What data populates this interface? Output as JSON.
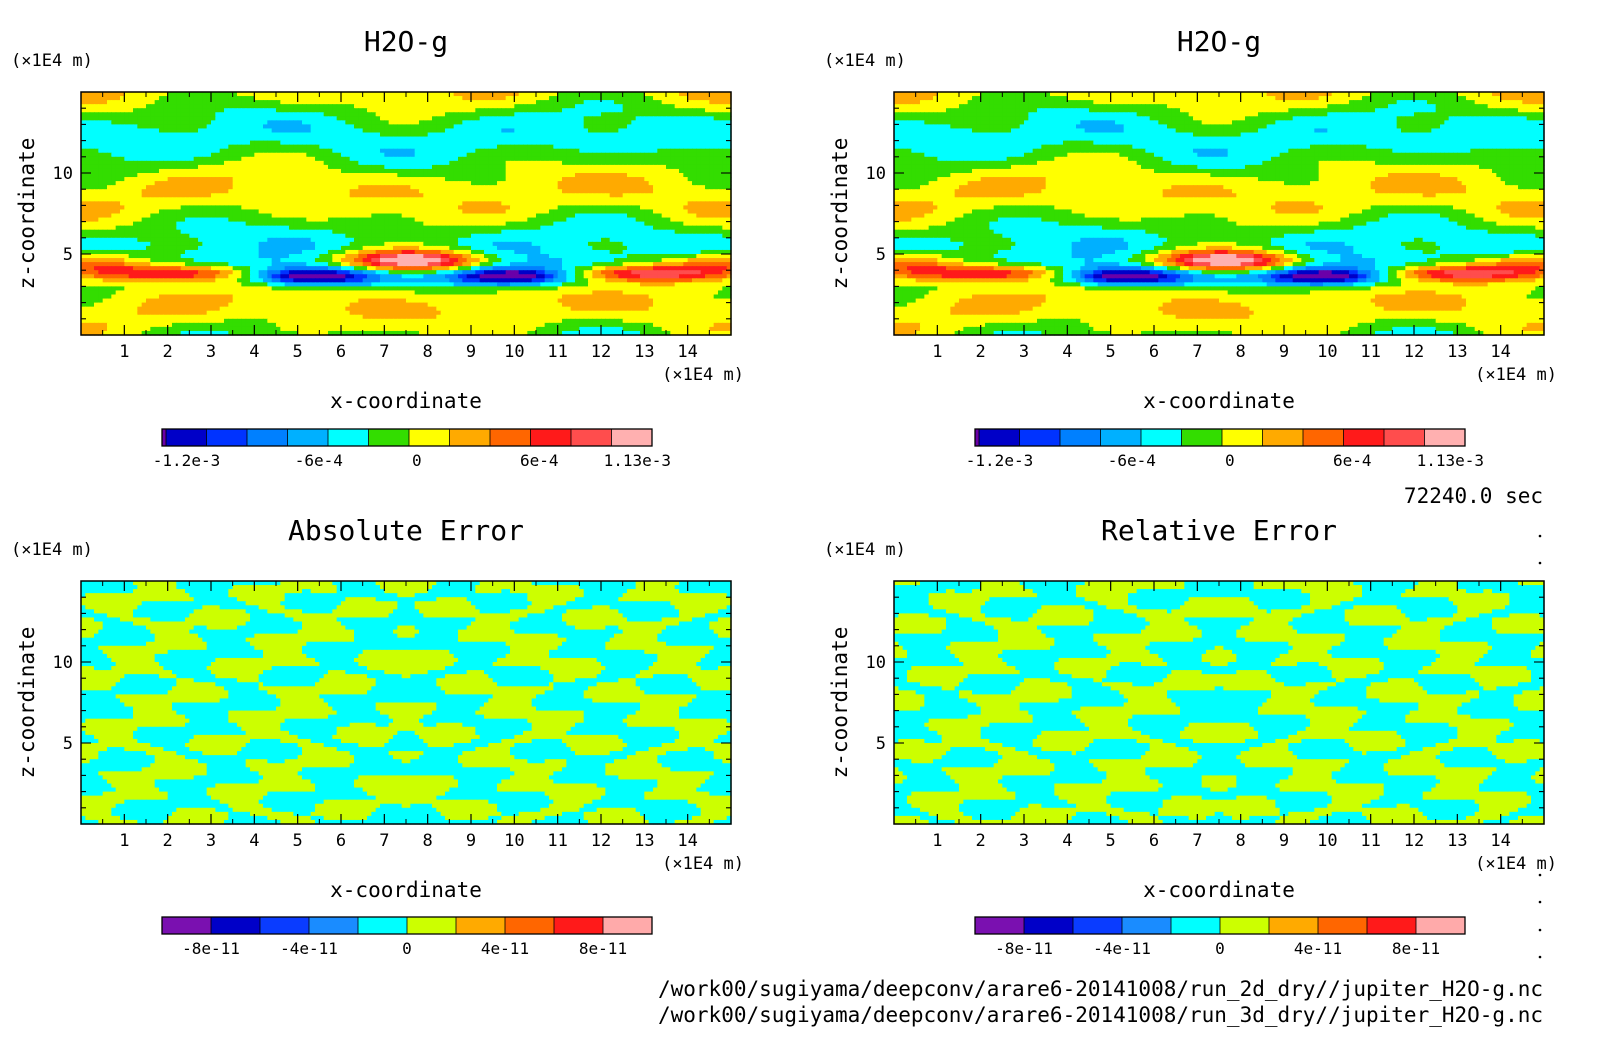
{
  "time_label": "72240.0 sec",
  "file_paths": [
    "/work00/sugiyama/deepconv/arare6-20141008/run_2d_dry//jupiter_H2O-g.nc",
    "/work00/sugiyama/deepconv/arare6-20141008/run_3d_dry//jupiter_H2O-g.nc"
  ],
  "chart_data": [
    {
      "type": "heatmap",
      "title": "H2O-g",
      "xlabel": "x-coordinate",
      "ylabel": "z-coordinate",
      "x_unit": "(×1E4 m)",
      "y_unit": "(×1E4 m)",
      "xlim": [
        0,
        15
      ],
      "ylim": [
        0,
        15
      ],
      "x_ticks": [
        1,
        2,
        3,
        4,
        5,
        6,
        7,
        8,
        9,
        10,
        11,
        12,
        13,
        14
      ],
      "y_ticks": [
        5,
        10
      ],
      "variant": "field",
      "colorbar": {
        "labels": [
          "-1.2e-3",
          "-6e-4",
          "0",
          "6e-4",
          "1.13e-3"
        ],
        "colors": [
          "#6a00a8",
          "#0000c8",
          "#0033ff",
          "#0080ff",
          "#00b0ff",
          "#00ffff",
          "#33dd00",
          "#ffff00",
          "#ffaa00",
          "#ff6600",
          "#ff1a1a",
          "#ff4d4d",
          "#ffb0b0"
        ]
      }
    },
    {
      "type": "heatmap",
      "title": "H2O-g",
      "xlabel": "x-coordinate",
      "ylabel": "z-coordinate",
      "x_unit": "(×1E4 m)",
      "y_unit": "(×1E4 m)",
      "xlim": [
        0,
        15
      ],
      "ylim": [
        0,
        15
      ],
      "x_ticks": [
        1,
        2,
        3,
        4,
        5,
        6,
        7,
        8,
        9,
        10,
        11,
        12,
        13,
        14
      ],
      "y_ticks": [
        5,
        10
      ],
      "variant": "field",
      "colorbar": {
        "labels": [
          "-1.2e-3",
          "-6e-4",
          "0",
          "6e-4",
          "1.13e-3"
        ],
        "colors": [
          "#6a00a8",
          "#0000c8",
          "#0033ff",
          "#0080ff",
          "#00b0ff",
          "#00ffff",
          "#33dd00",
          "#ffff00",
          "#ffaa00",
          "#ff6600",
          "#ff1a1a",
          "#ff4d4d",
          "#ffb0b0"
        ]
      }
    },
    {
      "type": "heatmap",
      "title": "Absolute Error",
      "xlabel": "x-coordinate",
      "ylabel": "z-coordinate",
      "x_unit": "(×1E4 m)",
      "y_unit": "(×1E4 m)",
      "xlim": [
        0,
        15
      ],
      "ylim": [
        0,
        15
      ],
      "x_ticks": [
        1,
        2,
        3,
        4,
        5,
        6,
        7,
        8,
        9,
        10,
        11,
        12,
        13,
        14
      ],
      "y_ticks": [
        5,
        10
      ],
      "variant": "error",
      "colorbar": {
        "labels": [
          "-8e-11",
          "-4e-11",
          "0",
          "4e-11",
          "8e-11"
        ],
        "colors": [
          "#7a10b0",
          "#0000c8",
          "#0a3cff",
          "#1a8cff",
          "#00ffff",
          "#ccff00",
          "#ffaa00",
          "#ff6600",
          "#ff1a1a",
          "#ffaaaa"
        ]
      }
    },
    {
      "type": "heatmap",
      "title": "Relative Error",
      "xlabel": "x-coordinate",
      "ylabel": "z-coordinate",
      "x_unit": "(×1E4 m)",
      "y_unit": "(×1E4 m)",
      "xlim": [
        0,
        15
      ],
      "ylim": [
        0,
        15
      ],
      "x_ticks": [
        1,
        2,
        3,
        4,
        5,
        6,
        7,
        8,
        9,
        10,
        11,
        12,
        13,
        14
      ],
      "y_ticks": [
        5,
        10
      ],
      "variant": "error2",
      "colorbar": {
        "labels": [
          "-8e-11",
          "-4e-11",
          "0",
          "4e-11",
          "8e-11"
        ],
        "colors": [
          "#7a10b0",
          "#0000c8",
          "#0a3cff",
          "#1a8cff",
          "#00ffff",
          "#ccff00",
          "#ffaa00",
          "#ff6600",
          "#ff1a1a",
          "#ffaaaa"
        ]
      }
    }
  ]
}
